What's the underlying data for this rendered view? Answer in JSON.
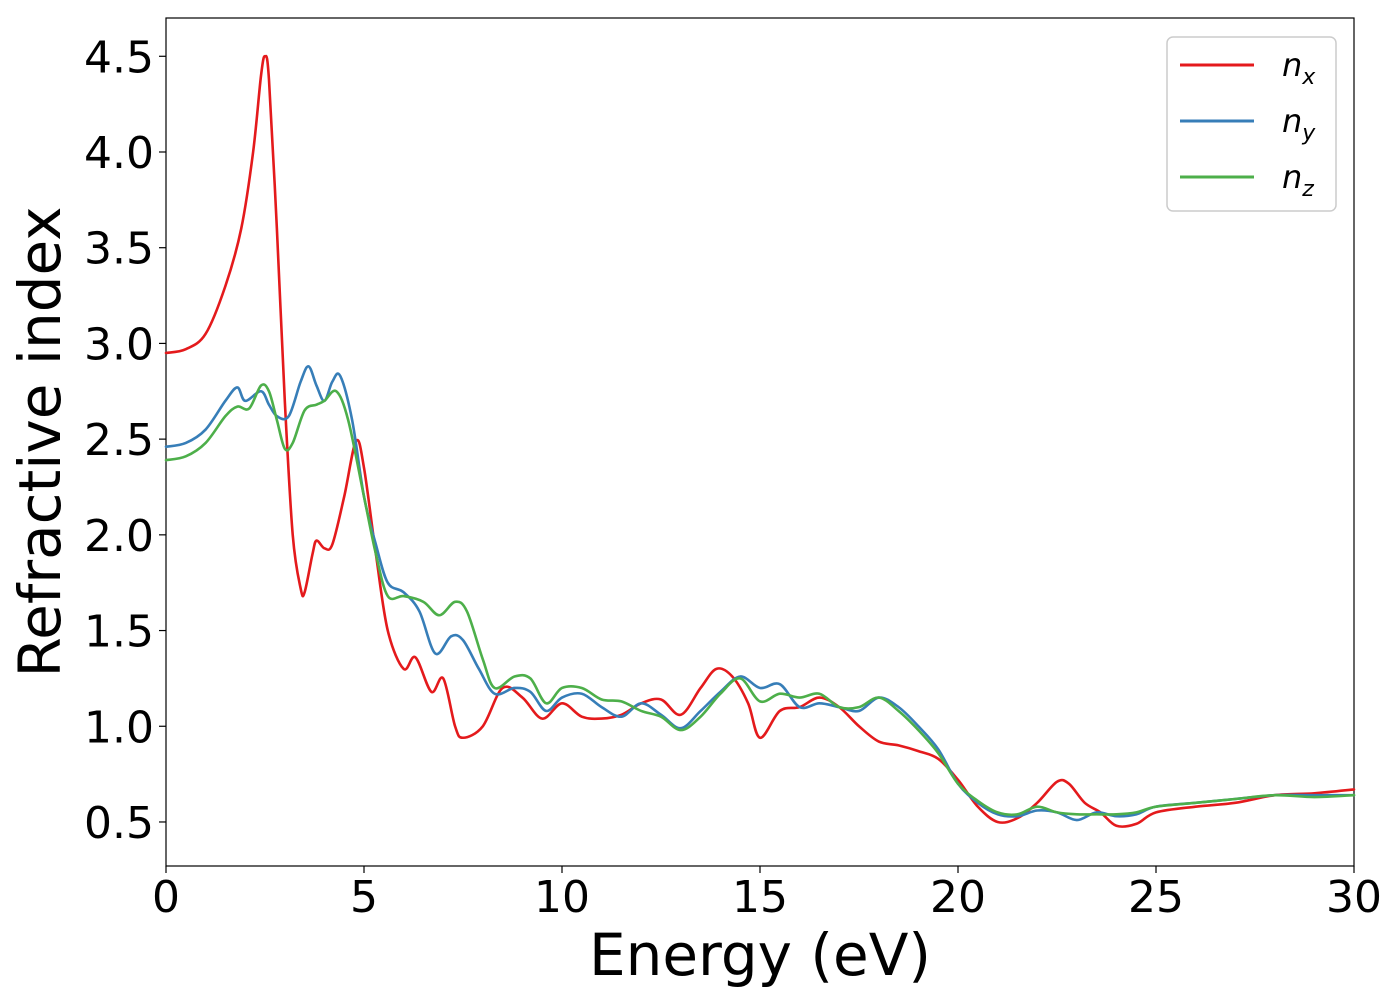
{
  "chart_data": {
    "type": "line",
    "xlabel": "Energy (eV)",
    "ylabel": "Refractive index",
    "xlim": [
      0,
      30
    ],
    "ylim": [
      0.27,
      4.7
    ],
    "xticks": [
      0,
      5,
      10,
      15,
      20,
      25,
      30
    ],
    "xtick_labels": [
      "0",
      "5",
      "10",
      "15",
      "20",
      "25",
      "30"
    ],
    "yticks": [
      0.5,
      1.0,
      1.5,
      2.0,
      2.5,
      3.0,
      3.5,
      4.0,
      4.5
    ],
    "ytick_labels": [
      "0.5",
      "1.0",
      "1.5",
      "2.0",
      "2.5",
      "3.0",
      "3.5",
      "4.0",
      "4.5"
    ],
    "grid": false,
    "legend_position": "top-right",
    "series": [
      {
        "name": "n_x",
        "legend_base": "n",
        "legend_sub": "x",
        "color": "#e41a1c",
        "points": [
          [
            0,
            2.95
          ],
          [
            0.5,
            2.97
          ],
          [
            1.0,
            3.05
          ],
          [
            1.5,
            3.3
          ],
          [
            1.9,
            3.6
          ],
          [
            2.2,
            4.0
          ],
          [
            2.4,
            4.4
          ],
          [
            2.5,
            4.5
          ],
          [
            2.6,
            4.38
          ],
          [
            2.8,
            3.6
          ],
          [
            3.0,
            2.7
          ],
          [
            3.2,
            2.0
          ],
          [
            3.4,
            1.72
          ],
          [
            3.5,
            1.7
          ],
          [
            3.7,
            1.9
          ],
          [
            3.8,
            1.97
          ],
          [
            4.0,
            1.93
          ],
          [
            4.2,
            1.95
          ],
          [
            4.5,
            2.2
          ],
          [
            4.8,
            2.49
          ],
          [
            5.0,
            2.35
          ],
          [
            5.3,
            1.9
          ],
          [
            5.6,
            1.5
          ],
          [
            6.0,
            1.3
          ],
          [
            6.3,
            1.36
          ],
          [
            6.7,
            1.18
          ],
          [
            7.0,
            1.25
          ],
          [
            7.3,
            1.0
          ],
          [
            7.5,
            0.94
          ],
          [
            8.0,
            1.0
          ],
          [
            8.5,
            1.2
          ],
          [
            9.0,
            1.15
          ],
          [
            9.5,
            1.04
          ],
          [
            10.0,
            1.12
          ],
          [
            10.5,
            1.05
          ],
          [
            11.0,
            1.04
          ],
          [
            11.5,
            1.06
          ],
          [
            12.0,
            1.12
          ],
          [
            12.5,
            1.14
          ],
          [
            13.0,
            1.06
          ],
          [
            13.5,
            1.2
          ],
          [
            13.9,
            1.3
          ],
          [
            14.3,
            1.26
          ],
          [
            14.7,
            1.12
          ],
          [
            15.0,
            0.94
          ],
          [
            15.5,
            1.08
          ],
          [
            16.0,
            1.1
          ],
          [
            16.5,
            1.15
          ],
          [
            17.0,
            1.1
          ],
          [
            17.5,
            1.0
          ],
          [
            18.0,
            0.92
          ],
          [
            18.5,
            0.9
          ],
          [
            19.0,
            0.87
          ],
          [
            19.5,
            0.83
          ],
          [
            20.0,
            0.72
          ],
          [
            20.5,
            0.58
          ],
          [
            21.0,
            0.5
          ],
          [
            21.5,
            0.52
          ],
          [
            22.0,
            0.6
          ],
          [
            22.5,
            0.71
          ],
          [
            22.8,
            0.7
          ],
          [
            23.2,
            0.6
          ],
          [
            23.6,
            0.55
          ],
          [
            24.0,
            0.48
          ],
          [
            24.5,
            0.49
          ],
          [
            25.0,
            0.55
          ],
          [
            26.0,
            0.58
          ],
          [
            27.0,
            0.6
          ],
          [
            28.0,
            0.64
          ],
          [
            29.0,
            0.65
          ],
          [
            30.0,
            0.67
          ]
        ]
      },
      {
        "name": "n_y",
        "legend_base": "n",
        "legend_sub": "y",
        "color": "#377eb8",
        "points": [
          [
            0,
            2.46
          ],
          [
            0.5,
            2.48
          ],
          [
            1.0,
            2.55
          ],
          [
            1.5,
            2.7
          ],
          [
            1.8,
            2.77
          ],
          [
            2.0,
            2.7
          ],
          [
            2.4,
            2.75
          ],
          [
            2.6,
            2.68
          ],
          [
            2.8,
            2.62
          ],
          [
            3.1,
            2.62
          ],
          [
            3.4,
            2.8
          ],
          [
            3.6,
            2.88
          ],
          [
            3.8,
            2.78
          ],
          [
            4.0,
            2.7
          ],
          [
            4.2,
            2.8
          ],
          [
            4.4,
            2.83
          ],
          [
            4.7,
            2.6
          ],
          [
            5.0,
            2.2
          ],
          [
            5.3,
            1.95
          ],
          [
            5.6,
            1.75
          ],
          [
            6.0,
            1.7
          ],
          [
            6.4,
            1.6
          ],
          [
            6.8,
            1.38
          ],
          [
            7.2,
            1.47
          ],
          [
            7.5,
            1.45
          ],
          [
            7.9,
            1.3
          ],
          [
            8.3,
            1.17
          ],
          [
            8.8,
            1.2
          ],
          [
            9.2,
            1.18
          ],
          [
            9.6,
            1.08
          ],
          [
            10.0,
            1.15
          ],
          [
            10.5,
            1.17
          ],
          [
            11.0,
            1.1
          ],
          [
            11.5,
            1.05
          ],
          [
            12.0,
            1.12
          ],
          [
            12.5,
            1.06
          ],
          [
            13.0,
            0.99
          ],
          [
            13.5,
            1.08
          ],
          [
            14.0,
            1.18
          ],
          [
            14.5,
            1.26
          ],
          [
            15.0,
            1.2
          ],
          [
            15.5,
            1.22
          ],
          [
            16.0,
            1.1
          ],
          [
            16.5,
            1.12
          ],
          [
            17.0,
            1.1
          ],
          [
            17.5,
            1.08
          ],
          [
            18.0,
            1.15
          ],
          [
            18.5,
            1.1
          ],
          [
            19.0,
            1.0
          ],
          [
            19.5,
            0.88
          ],
          [
            20.0,
            0.7
          ],
          [
            20.5,
            0.6
          ],
          [
            21.0,
            0.54
          ],
          [
            21.5,
            0.53
          ],
          [
            22.0,
            0.56
          ],
          [
            22.5,
            0.55
          ],
          [
            23.0,
            0.51
          ],
          [
            23.5,
            0.55
          ],
          [
            24.0,
            0.53
          ],
          [
            24.5,
            0.54
          ],
          [
            25.0,
            0.58
          ],
          [
            26.0,
            0.6
          ],
          [
            27.0,
            0.62
          ],
          [
            28.0,
            0.64
          ],
          [
            29.0,
            0.64
          ],
          [
            30.0,
            0.64
          ]
        ]
      },
      {
        "name": "n_z",
        "legend_base": "n",
        "legend_sub": "z",
        "color": "#4daf4a",
        "points": [
          [
            0,
            2.39
          ],
          [
            0.5,
            2.41
          ],
          [
            1.0,
            2.48
          ],
          [
            1.5,
            2.62
          ],
          [
            1.8,
            2.67
          ],
          [
            2.1,
            2.66
          ],
          [
            2.4,
            2.78
          ],
          [
            2.6,
            2.75
          ],
          [
            2.8,
            2.6
          ],
          [
            3.0,
            2.45
          ],
          [
            3.2,
            2.48
          ],
          [
            3.5,
            2.65
          ],
          [
            3.8,
            2.68
          ],
          [
            4.0,
            2.7
          ],
          [
            4.3,
            2.75
          ],
          [
            4.6,
            2.6
          ],
          [
            5.0,
            2.2
          ],
          [
            5.3,
            1.9
          ],
          [
            5.6,
            1.68
          ],
          [
            6.0,
            1.68
          ],
          [
            6.5,
            1.65
          ],
          [
            6.9,
            1.58
          ],
          [
            7.3,
            1.65
          ],
          [
            7.6,
            1.6
          ],
          [
            8.0,
            1.35
          ],
          [
            8.3,
            1.2
          ],
          [
            8.8,
            1.26
          ],
          [
            9.2,
            1.25
          ],
          [
            9.6,
            1.12
          ],
          [
            10.0,
            1.2
          ],
          [
            10.5,
            1.2
          ],
          [
            11.0,
            1.14
          ],
          [
            11.5,
            1.13
          ],
          [
            12.0,
            1.08
          ],
          [
            12.5,
            1.05
          ],
          [
            13.0,
            0.98
          ],
          [
            13.5,
            1.05
          ],
          [
            14.0,
            1.17
          ],
          [
            14.5,
            1.25
          ],
          [
            15.0,
            1.13
          ],
          [
            15.5,
            1.17
          ],
          [
            16.0,
            1.15
          ],
          [
            16.5,
            1.17
          ],
          [
            17.0,
            1.1
          ],
          [
            17.5,
            1.1
          ],
          [
            18.0,
            1.15
          ],
          [
            18.5,
            1.08
          ],
          [
            19.0,
            0.98
          ],
          [
            19.5,
            0.86
          ],
          [
            20.0,
            0.7
          ],
          [
            20.5,
            0.61
          ],
          [
            21.0,
            0.55
          ],
          [
            21.5,
            0.54
          ],
          [
            22.0,
            0.58
          ],
          [
            22.5,
            0.55
          ],
          [
            23.0,
            0.54
          ],
          [
            23.5,
            0.54
          ],
          [
            24.0,
            0.54
          ],
          [
            24.5,
            0.55
          ],
          [
            25.0,
            0.58
          ],
          [
            26.0,
            0.6
          ],
          [
            27.0,
            0.62
          ],
          [
            28.0,
            0.64
          ],
          [
            29.0,
            0.63
          ],
          [
            30.0,
            0.64
          ]
        ]
      }
    ]
  }
}
